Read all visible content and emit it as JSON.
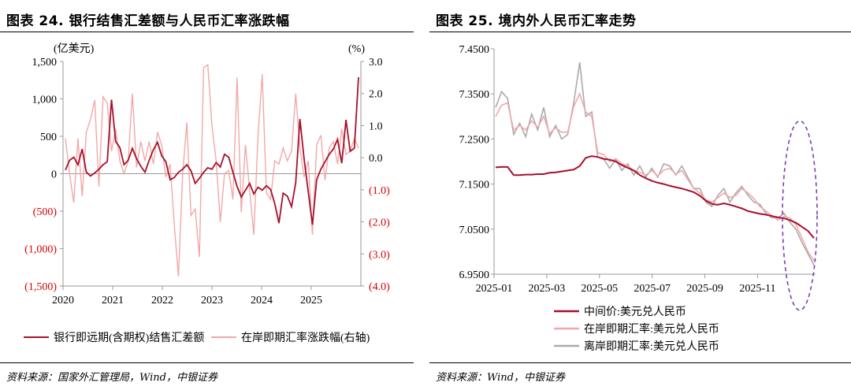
{
  "left": {
    "title": "图表 24. 银行结售汇差额与人民币汇率涨跌幅",
    "source": "资料来源：国家外汇管理局，Wind，中银证券",
    "chart_data": {
      "type": "line",
      "left_unit": "(亿美元)",
      "right_unit": "(%)",
      "left_ticks": [
        "1,500",
        "1,000",
        "500",
        "0",
        "(500)",
        "(1,000)",
        "(1,500)"
      ],
      "left_tick_values": [
        1500,
        1000,
        500,
        0,
        -500,
        -1000,
        -1500
      ],
      "right_ticks": [
        "3.0",
        "2.0",
        "1.0",
        "0.0",
        "(1.0)",
        "(2.0)",
        "(3.0)",
        "(4.0)"
      ],
      "right_tick_values": [
        3,
        2,
        1,
        0,
        -1,
        -2,
        -3,
        -4
      ],
      "x_ticks": [
        "2020",
        "2021",
        "2022",
        "2023",
        "2024",
        "2025"
      ],
      "ylim_left": [
        -1500,
        1500
      ],
      "ylim_right": [
        -4,
        3
      ],
      "series": [
        {
          "name": "银行即远期(含期权)结售汇差额",
          "axis": "left",
          "color": "#a8102c",
          "values": [
            50,
            180,
            220,
            120,
            330,
            20,
            -30,
            10,
            60,
            120,
            160,
            990,
            430,
            350,
            120,
            180,
            340,
            200,
            100,
            20,
            180,
            320,
            420,
            240,
            160,
            -80,
            -50,
            20,
            60,
            120,
            40,
            -130,
            -60,
            20,
            80,
            60,
            150,
            90,
            260,
            220,
            20,
            -170,
            -310,
            -220,
            -130,
            -270,
            -180,
            -220,
            -160,
            -210,
            -400,
            -660,
            -260,
            -300,
            -440,
            -120,
            730,
            200,
            -240,
            -680,
            -80,
            60,
            160,
            260,
            330,
            460,
            140,
            720,
            300,
            340,
            1290
          ]
        },
        {
          "name": "在岸即期汇率涨跌幅(右轴)",
          "axis": "right",
          "color": "#f2a8a8",
          "values": [
            0.6,
            -0.5,
            -1.4,
            0.6,
            -1.2,
            0.8,
            1.2,
            1.8,
            -0.9,
            1.9,
            1.7,
            0.2,
            0.9,
            -0.1,
            -0.5,
            -0.1,
            2.0,
            -0.3,
            0.5,
            -0.1,
            0.5,
            -0.2,
            0.8,
            0.4,
            -0.6,
            -0.2,
            -2.1,
            -3.7,
            -0.5,
            1.1,
            -1.8,
            -1.6,
            -3.1,
            2.8,
            2.9,
            1.0,
            -0.1,
            -2.0,
            -0.5,
            -0.4,
            -1.3,
            2.5,
            -1.7,
            0.4,
            -1.0,
            -2.4,
            0.7,
            2.6,
            -1.1,
            -1.3,
            -0.1,
            -0.2,
            0.3,
            -0.1,
            0.2,
            2.0,
            0.3,
            -0.6,
            -0.1,
            -2.4,
            0.4,
            0.7,
            -0.7,
            0.3,
            0.5,
            -0.2,
            0.9,
            0.1,
            0.2,
            0.6,
            0.3
          ]
        }
      ]
    },
    "legend": [
      "银行即远期(含期权)结售汇差额",
      "在岸即期汇率涨跌幅(右轴)"
    ]
  },
  "right": {
    "title": "图表 25. 境内外人民币汇率走势",
    "source": "资料来源：Wind，中银证券",
    "chart_data": {
      "type": "line",
      "y_ticks": [
        "7.4500",
        "7.3500",
        "7.2500",
        "7.1500",
        "7.0500",
        "6.9500"
      ],
      "y_tick_values": [
        7.45,
        7.35,
        7.25,
        7.15,
        7.05,
        6.95
      ],
      "x_ticks": [
        "2025-01",
        "2025-03",
        "2025-05",
        "2025-07",
        "2025-09",
        "2025-11"
      ],
      "ylim": [
        6.95,
        7.45
      ],
      "annotation": "dashed ellipse around the last weeks of December 2025",
      "series": [
        {
          "name": "中间价:美元兑人民币",
          "color": "#a8102c",
          "values": [
            7.187,
            7.188,
            7.188,
            7.17,
            7.17,
            7.171,
            7.171,
            7.172,
            7.172,
            7.175,
            7.176,
            7.178,
            7.18,
            7.182,
            7.19,
            7.208,
            7.212,
            7.21,
            7.206,
            7.204,
            7.2,
            7.192,
            7.186,
            7.18,
            7.17,
            7.163,
            7.157,
            7.153,
            7.15,
            7.146,
            7.143,
            7.14,
            7.136,
            7.132,
            7.124,
            7.113,
            7.106,
            7.104,
            7.107,
            7.104,
            7.1,
            7.096,
            7.09,
            7.087,
            7.084,
            7.082,
            7.079,
            7.076,
            7.074,
            7.07,
            7.064,
            7.055,
            7.046,
            7.03
          ]
        },
        {
          "name": "在岸即期汇率:美元兑人民币",
          "color": "#f0a8aa",
          "values": [
            7.3,
            7.325,
            7.33,
            7.27,
            7.28,
            7.27,
            7.29,
            7.276,
            7.3,
            7.262,
            7.275,
            7.265,
            7.265,
            7.322,
            7.35,
            7.31,
            7.3,
            7.22,
            7.215,
            7.2,
            7.206,
            7.195,
            7.19,
            7.18,
            7.176,
            7.17,
            7.18,
            7.168,
            7.181,
            7.185,
            7.172,
            7.18,
            7.16,
            7.14,
            7.13,
            7.115,
            7.11,
            7.12,
            7.13,
            7.12,
            7.125,
            7.14,
            7.13,
            7.118,
            7.1,
            7.09,
            7.08,
            7.07,
            7.078,
            7.075,
            7.06,
            7.03,
            7.0,
            6.98
          ]
        },
        {
          "name": "离岸即期汇率:美元兑人民币",
          "color": "#aaaaaa",
          "values": [
            7.32,
            7.355,
            7.34,
            7.26,
            7.285,
            7.255,
            7.305,
            7.27,
            7.32,
            7.255,
            7.28,
            7.25,
            7.26,
            7.33,
            7.42,
            7.3,
            7.31,
            7.21,
            7.205,
            7.185,
            7.205,
            7.18,
            7.195,
            7.17,
            7.19,
            7.165,
            7.185,
            7.165,
            7.195,
            7.19,
            7.17,
            7.19,
            7.165,
            7.14,
            7.14,
            7.11,
            7.1,
            7.125,
            7.14,
            7.11,
            7.13,
            7.145,
            7.125,
            7.11,
            7.105,
            7.085,
            7.075,
            7.075,
            7.085,
            7.065,
            7.05,
            7.02,
            6.995,
            6.97
          ]
        }
      ]
    },
    "legend": [
      "中间价:美元兑人民币",
      "在岸即期汇率:美元兑人民币",
      "离岸即期汇率:美元兑人民币"
    ]
  }
}
